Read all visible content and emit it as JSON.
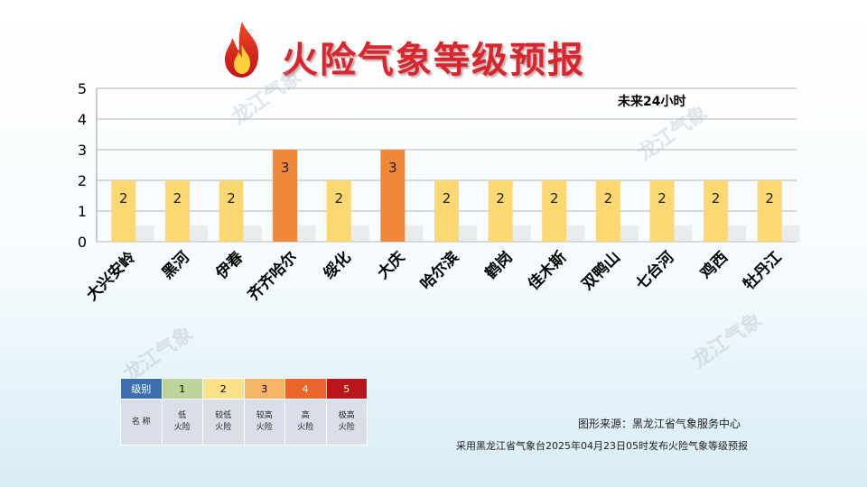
{
  "title": "火险气象等级预报",
  "period_label": "未来24小时",
  "watermark": "龙江气象",
  "chart_data": {
    "type": "bar",
    "title": "火险气象等级预报",
    "categories": [
      "大兴安岭",
      "黑河",
      "伊春",
      "齐齐哈尔",
      "绥化",
      "大庆",
      "哈尔滨",
      "鹤岗",
      "佳木斯",
      "双鸭山",
      "七台河",
      "鸡西",
      "牡丹江"
    ],
    "values": [
      2,
      2,
      2,
      3,
      2,
      3,
      2,
      2,
      2,
      2,
      2,
      2,
      2
    ],
    "ylim": [
      0,
      5
    ],
    "yticks": [
      "0",
      "1",
      "2",
      "3",
      "4",
      "5"
    ],
    "grid": true,
    "xlabel": "",
    "ylabel": "",
    "bar_label_position": "inside-top"
  },
  "legend": {
    "header_label": "级别",
    "name_label": "名 称",
    "levels": [
      {
        "level": "1",
        "line1": "低",
        "line2": "火险",
        "color": "#bcd39a"
      },
      {
        "level": "2",
        "line1": "较低",
        "line2": "火险",
        "color": "#fbe08a"
      },
      {
        "level": "3",
        "line1": "较高",
        "line2": "火险",
        "color": "#f7b567"
      },
      {
        "level": "4",
        "line1": "高",
        "line2": "火险",
        "color": "#e9652c"
      },
      {
        "level": "5",
        "line1": "极高",
        "line2": "火险",
        "color": "#b8161b"
      }
    ],
    "header_color": "#3c6fb0"
  },
  "source": "图形来源：黑龙江省气象服务中心",
  "footnote": "采用黑龙江省气象台2025年04月23日05时发布火险气象等级预报",
  "colors": {
    "level2_bar": "#fbd872",
    "level3_bar": "#f1873a",
    "title_red": "#d8262e"
  }
}
